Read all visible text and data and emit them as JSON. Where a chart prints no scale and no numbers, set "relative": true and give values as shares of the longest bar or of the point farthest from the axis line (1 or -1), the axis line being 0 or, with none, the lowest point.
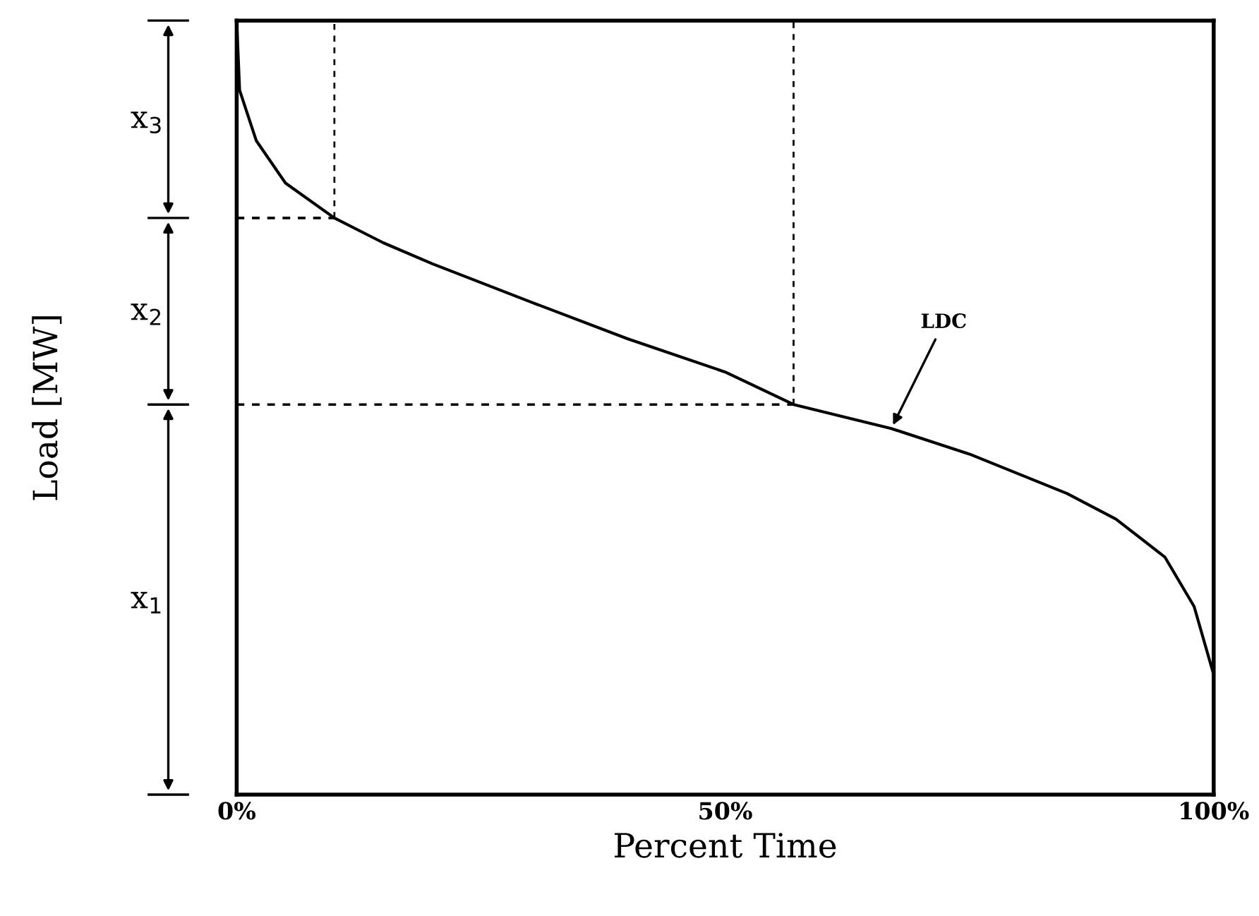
{
  "chart_data": {
    "type": "line",
    "relative": true,
    "xlabel": "Percent Time",
    "ylabel": "Load [MW]",
    "x": [
      0,
      0.3,
      2,
      5,
      10,
      15,
      20,
      30,
      40,
      50,
      57,
      67,
      75,
      85,
      90,
      95,
      98,
      100
    ],
    "series": [
      {
        "color": "#000000",
        "values": [
          1.0,
          0.91,
          0.845,
          0.79,
          0.745,
          0.713,
          0.686,
          0.637,
          0.589,
          0.546,
          0.504,
          0.473,
          0.44,
          0.389,
          0.356,
          0.307,
          0.243,
          0.155
        ]
      }
    ],
    "xlim": [
      0,
      100
    ],
    "xticks": [
      {
        "value": 0,
        "label": "0%"
      },
      {
        "value": 50,
        "label": "50%"
      },
      {
        "value": 100,
        "label": "100%"
      }
    ],
    "tick_labels": "x",
    "grid": false,
    "legend": false,
    "marker": "none",
    "line_style": "solid",
    "ref_lines": [
      {
        "axis": "x",
        "value": 10,
        "line_style": "dashed"
      },
      {
        "axis": "x",
        "value": 57,
        "line_style": "dashed"
      },
      {
        "axis": "y",
        "value": 0.745,
        "line_style": "dashed"
      },
      {
        "axis": "y",
        "value": 0.504,
        "line_style": "dashed"
      }
    ],
    "annotations": [
      {
        "text": "LDC",
        "x": 67,
        "y": 0.473
      },
      "x$_{3}$",
      "x$_{2}$",
      "x$_{1}$"
    ]
  }
}
